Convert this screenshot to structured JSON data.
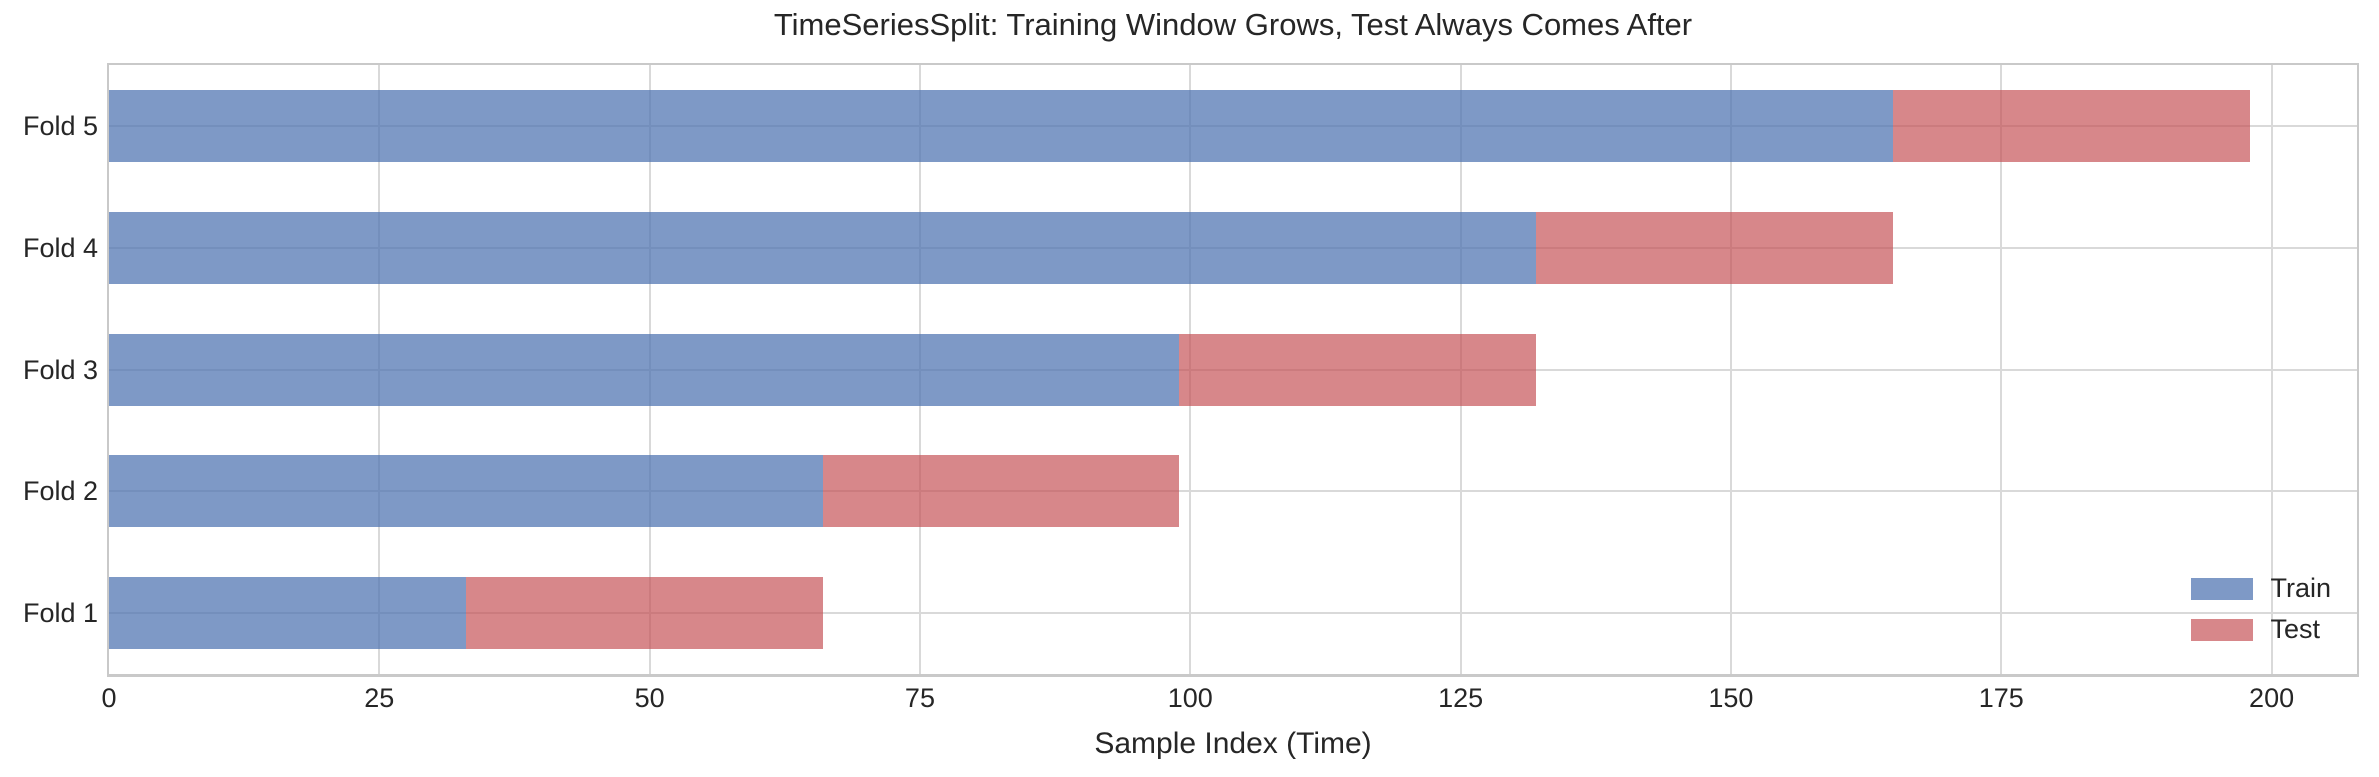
{
  "figure": {
    "title": "TimeSeriesSplit: Training Window Grows, Test Always Comes After",
    "xlabel": "Sample Index (Time)"
  },
  "chart_data": {
    "type": "bar",
    "orientation": "horizontal",
    "stacked": true,
    "title": "TimeSeriesSplit: Training Window Grows, Test Always Comes After",
    "xlabel": "Sample Index (Time)",
    "ylabel": "",
    "categories": [
      "Fold 1",
      "Fold 2",
      "Fold 3",
      "Fold 4",
      "Fold 5"
    ],
    "display_order_top_to_bottom": [
      "Fold 5",
      "Fold 4",
      "Fold 3",
      "Fold 2",
      "Fold 1"
    ],
    "series": [
      {
        "name": "Train",
        "color_hex": "#7E9CC8",
        "color_rgba": "rgba(76,114,176,0.72)",
        "segments": [
          [
            0,
            33
          ],
          [
            0,
            66
          ],
          [
            0,
            99
          ],
          [
            0,
            132
          ],
          [
            0,
            165
          ]
        ]
      },
      {
        "name": "Test",
        "color_hex": "#D6878C",
        "color_rgba": "rgba(196,78,82,0.68)",
        "segments": [
          [
            33,
            66
          ],
          [
            66,
            99
          ],
          [
            99,
            132
          ],
          [
            132,
            165
          ],
          [
            165,
            198
          ]
        ]
      }
    ],
    "folds": [
      {
        "label": "Fold 1",
        "train_start": 0,
        "train_end": 33,
        "test_start": 33,
        "test_end": 66
      },
      {
        "label": "Fold 2",
        "train_start": 0,
        "train_end": 66,
        "test_start": 66,
        "test_end": 99
      },
      {
        "label": "Fold 3",
        "train_start": 0,
        "train_end": 99,
        "test_start": 99,
        "test_end": 132
      },
      {
        "label": "Fold 4",
        "train_start": 0,
        "train_end": 132,
        "test_start": 132,
        "test_end": 165
      },
      {
        "label": "Fold 5",
        "train_start": 0,
        "train_end": 165,
        "test_start": 165,
        "test_end": 198
      }
    ],
    "xticks": [
      0,
      25,
      50,
      75,
      100,
      125,
      150,
      175,
      200
    ],
    "xlim": [
      0,
      207.9
    ],
    "grid": true,
    "legend": {
      "position": "lower right",
      "entries": [
        "Train",
        "Test"
      ]
    }
  },
  "colors": {
    "train_bar": "#7E9CC8",
    "test_bar": "#D6878C",
    "gridline": "#D9D9D9",
    "spine": "#C9C9C9",
    "text": "#262626",
    "background": "#FFFFFF"
  }
}
